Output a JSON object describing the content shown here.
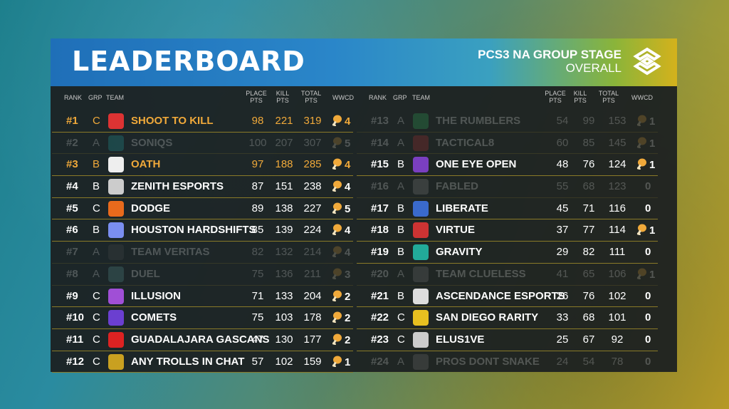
{
  "header": {
    "title": "LEADERBOARD",
    "stage_line1": "PCS3 NA GROUP STAGE",
    "stage_line2": "OVERALL"
  },
  "columns": {
    "rank": "RANK",
    "grp": "GRP",
    "team": "TEAM",
    "place_a": "PLACE",
    "place_b": "PTS",
    "kill_a": "KILL",
    "kill_b": "PTS",
    "total_a": "TOTAL",
    "total_b": "PTS",
    "wwcd": "WWCD"
  },
  "colors": {
    "gold": "#f0a93a",
    "separator": "#8a7a28"
  },
  "left": [
    {
      "rank": "#1",
      "grp": "C",
      "team": "SHOOT TO KILL",
      "place": "98",
      "kill": "221",
      "total": "319",
      "wwcd": "4",
      "state": "gold",
      "logo": "#d33"
    },
    {
      "rank": "#2",
      "grp": "A",
      "team": "SONIQS",
      "place": "100",
      "kill": "207",
      "total": "307",
      "wwcd": "5",
      "state": "dim",
      "logo": "#2bb"
    },
    {
      "rank": "#3",
      "grp": "B",
      "team": "OATH",
      "place": "97",
      "kill": "188",
      "total": "285",
      "wwcd": "4",
      "state": "gold",
      "logo": "#eee"
    },
    {
      "rank": "#4",
      "grp": "B",
      "team": "ZENITH ESPORTS",
      "place": "87",
      "kill": "151",
      "total": "238",
      "wwcd": "4",
      "state": "normal",
      "logo": "#ccc"
    },
    {
      "rank": "#5",
      "grp": "C",
      "team": "DODGE",
      "place": "89",
      "kill": "138",
      "total": "227",
      "wwcd": "5",
      "state": "normal",
      "logo": "#e86a1c"
    },
    {
      "rank": "#6",
      "grp": "B",
      "team": "HOUSTON HARDSHIFTS",
      "place": "85",
      "kill": "139",
      "total": "224",
      "wwcd": "4",
      "state": "normal",
      "logo": "#7a8ef0"
    },
    {
      "rank": "#7",
      "grp": "A",
      "team": "TEAM VERITAS",
      "place": "82",
      "kill": "132",
      "total": "214",
      "wwcd": "4",
      "state": "dim",
      "logo": "#555"
    },
    {
      "rank": "#8",
      "grp": "A",
      "team": "DUEL",
      "place": "75",
      "kill": "136",
      "total": "211",
      "wwcd": "3",
      "state": "dim",
      "logo": "#6aa"
    },
    {
      "rank": "#9",
      "grp": "C",
      "team": "ILLUSION",
      "place": "71",
      "kill": "133",
      "total": "204",
      "wwcd": "2",
      "state": "normal",
      "logo": "#a04fd6"
    },
    {
      "rank": "#10",
      "grp": "C",
      "team": "COMETS",
      "place": "75",
      "kill": "103",
      "total": "178",
      "wwcd": "2",
      "state": "normal",
      "logo": "#6b3fd0"
    },
    {
      "rank": "#11",
      "grp": "C",
      "team": "GUADALAJARA GASCANS",
      "place": "47",
      "kill": "130",
      "total": "177",
      "wwcd": "2",
      "state": "normal",
      "logo": "#d22"
    },
    {
      "rank": "#12",
      "grp": "C",
      "team": "ANY TROLLS IN CHAT",
      "place": "57",
      "kill": "102",
      "total": "159",
      "wwcd": "1",
      "state": "normal",
      "logo": "#c9a020"
    }
  ],
  "right": [
    {
      "rank": "#13",
      "grp": "A",
      "team": "THE RUMBLERS",
      "place": "54",
      "kill": "99",
      "total": "153",
      "wwcd": "1",
      "state": "dim",
      "logo": "#3c6"
    },
    {
      "rank": "#14",
      "grp": "A",
      "team": "TACTICAL8",
      "place": "60",
      "kill": "85",
      "total": "145",
      "wwcd": "1",
      "state": "dim",
      "logo": "#c33"
    },
    {
      "rank": "#15",
      "grp": "B",
      "team": "ONE EYE OPEN",
      "place": "48",
      "kill": "76",
      "total": "124",
      "wwcd": "1",
      "state": "normal",
      "logo": "#7a3fc0"
    },
    {
      "rank": "#16",
      "grp": "A",
      "team": "FABLED",
      "place": "55",
      "kill": "68",
      "total": "123",
      "wwcd": "0",
      "state": "dim",
      "logo": "#999"
    },
    {
      "rank": "#17",
      "grp": "B",
      "team": "LIBERATE",
      "place": "45",
      "kill": "71",
      "total": "116",
      "wwcd": "0",
      "state": "normal",
      "logo": "#3a6acc"
    },
    {
      "rank": "#18",
      "grp": "B",
      "team": "VIRTUE",
      "place": "37",
      "kill": "77",
      "total": "114",
      "wwcd": "1",
      "state": "normal",
      "logo": "#c33"
    },
    {
      "rank": "#19",
      "grp": "B",
      "team": "GRAVITY",
      "place": "29",
      "kill": "82",
      "total": "111",
      "wwcd": "0",
      "state": "normal",
      "logo": "#2a9"
    },
    {
      "rank": "#20",
      "grp": "A",
      "team": "TEAM CLUELESS",
      "place": "41",
      "kill": "65",
      "total": "106",
      "wwcd": "1",
      "state": "dim",
      "logo": "#888"
    },
    {
      "rank": "#21",
      "grp": "B",
      "team": "ASCENDANCE ESPORTS",
      "place": "26",
      "kill": "76",
      "total": "102",
      "wwcd": "0",
      "state": "normal",
      "logo": "#ddd"
    },
    {
      "rank": "#22",
      "grp": "C",
      "team": "SAN DIEGO RARITY",
      "place": "33",
      "kill": "68",
      "total": "101",
      "wwcd": "0",
      "state": "normal",
      "logo": "#e8c020"
    },
    {
      "rank": "#23",
      "grp": "C",
      "team": "ELUS1VE",
      "place": "25",
      "kill": "67",
      "total": "92",
      "wwcd": "0",
      "state": "normal",
      "logo": "#ccc"
    },
    {
      "rank": "#24",
      "grp": "A",
      "team": "PROS DONT SNAKE",
      "place": "24",
      "kill": "54",
      "total": "78",
      "wwcd": "0",
      "state": "dim",
      "logo": "#888"
    }
  ]
}
